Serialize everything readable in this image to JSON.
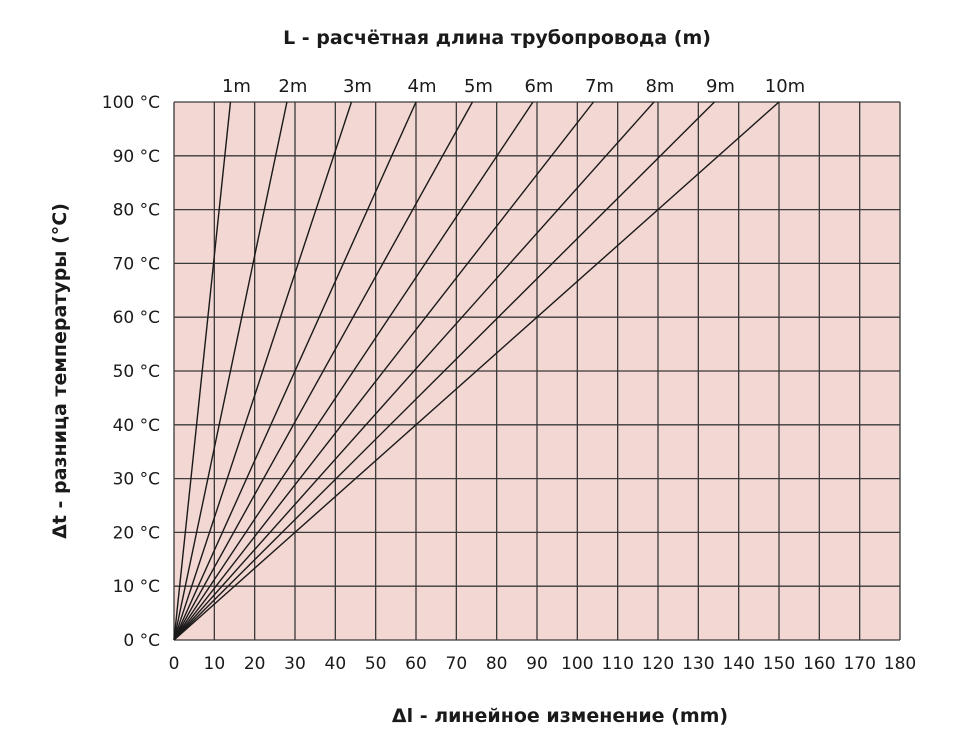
{
  "chart_data": {
    "type": "line",
    "title": "L - расчётная длина трубопровода (m)",
    "xlabel": "Δl - линейное изменение (mm)",
    "ylabel": "Δt - разница температуры (°C)",
    "xlim": [
      0,
      180
    ],
    "ylim": [
      0,
      100
    ],
    "x_ticks": [
      "0",
      "10",
      "20",
      "30",
      "40",
      "50",
      "60",
      "70",
      "80",
      "90",
      "100",
      "110",
      "120",
      "130",
      "140",
      "150",
      "160",
      "170",
      "180"
    ],
    "y_ticks": [
      "0 °C",
      "10 °C",
      "20 °C",
      "30 °C",
      "40 °C",
      "50 °C",
      "60 °C",
      "70 °C",
      "80 °C",
      "90 °C",
      "100 °C"
    ],
    "grid": true,
    "series": [
      {
        "name": "1m",
        "x": [
          0,
          14
        ],
        "y": [
          0,
          100
        ]
      },
      {
        "name": "2m",
        "x": [
          0,
          28
        ],
        "y": [
          0,
          100
        ]
      },
      {
        "name": "3m",
        "x": [
          0,
          44
        ],
        "y": [
          0,
          100
        ]
      },
      {
        "name": "4m",
        "x": [
          0,
          60
        ],
        "y": [
          0,
          100
        ]
      },
      {
        "name": "5m",
        "x": [
          0,
          74
        ],
        "y": [
          0,
          100
        ]
      },
      {
        "name": "6m",
        "x": [
          0,
          89
        ],
        "y": [
          0,
          100
        ]
      },
      {
        "name": "7m",
        "x": [
          0,
          104
        ],
        "y": [
          0,
          100
        ]
      },
      {
        "name": "8m",
        "x": [
          0,
          119
        ],
        "y": [
          0,
          100
        ]
      },
      {
        "name": "9m",
        "x": [
          0,
          134
        ],
        "y": [
          0,
          100
        ]
      },
      {
        "name": "10m",
        "x": [
          0,
          150
        ],
        "y": [
          0,
          100
        ]
      }
    ],
    "colors": {
      "plot_background": "#f3d7d2",
      "grid": "#3a3a3a",
      "lines": "#1a1a1a",
      "text": "#1a1a1a"
    }
  }
}
